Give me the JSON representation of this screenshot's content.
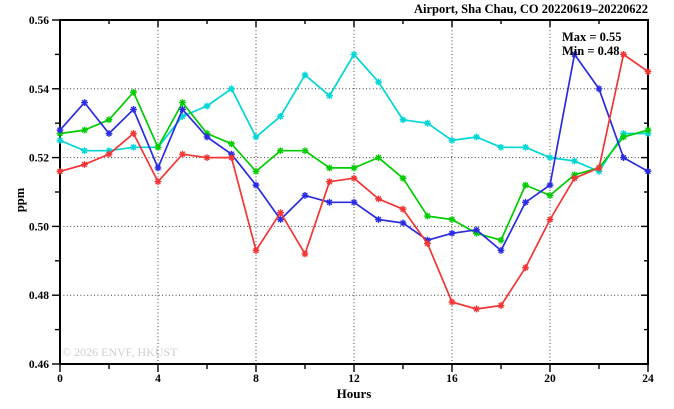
{
  "title": "Airport, Sha Chau, CO 20220619–20220622",
  "watermark": "© 2026 ENVF, HKUST",
  "annotations": {
    "max_label": "Max = 0.55",
    "min_label": "Min = 0.48"
  },
  "chart_data": {
    "type": "line",
    "title": "Airport, Sha Chau, CO 20220619–20220622",
    "xlabel": "Hours",
    "ylabel": "ppm",
    "xlim": [
      0,
      24
    ],
    "ylim": [
      0.46,
      0.56
    ],
    "grid": "dotted-major",
    "legend_position": "none",
    "marker": "asterisk",
    "x_tick_values": [
      0,
      4,
      8,
      12,
      16,
      20,
      24
    ],
    "x_tick_labels": [
      "0",
      "4",
      "8",
      "12",
      "16",
      "20",
      "24"
    ],
    "x_minor_tick_values": [
      2,
      6,
      10,
      14,
      18,
      22
    ],
    "y_tick_values": [
      0.46,
      0.48,
      0.5,
      0.52,
      0.54,
      0.56
    ],
    "y_tick_labels": [
      "0.46",
      "0.48",
      "0.50",
      "0.52",
      "0.54",
      "0.56"
    ],
    "y_minor_tick_values": [
      0.47,
      0.49,
      0.51,
      0.53,
      0.55
    ],
    "x_gridline_values": [
      4,
      8,
      12,
      16,
      20
    ],
    "y_gridline_values": [
      0.48,
      0.5,
      0.52,
      0.54
    ],
    "x": [
      0,
      1,
      2,
      3,
      4,
      5,
      6,
      7,
      8,
      9,
      10,
      11,
      12,
      13,
      14,
      15,
      16,
      17,
      18,
      19,
      20,
      21,
      22,
      23,
      24
    ],
    "series": [
      {
        "name": "cyan-series",
        "color": "#00d6d6",
        "values": [
          0.525,
          0.522,
          0.522,
          0.523,
          0.523,
          0.532,
          0.535,
          0.54,
          0.526,
          0.532,
          0.544,
          0.538,
          0.55,
          0.542,
          0.531,
          0.53,
          0.525,
          0.526,
          0.523,
          0.523,
          0.52,
          0.519,
          0.516,
          0.527,
          0.527
        ]
      },
      {
        "name": "green-series",
        "color": "#00cc00",
        "values": [
          0.527,
          0.528,
          0.531,
          0.539,
          0.523,
          0.536,
          0.527,
          0.524,
          0.516,
          0.522,
          0.522,
          0.517,
          0.517,
          0.52,
          0.514,
          0.503,
          0.502,
          0.498,
          0.496,
          0.512,
          0.509,
          0.515,
          0.517,
          0.526,
          0.528
        ]
      },
      {
        "name": "blue-series",
        "color": "#2b2bdf",
        "values": [
          0.528,
          0.536,
          0.527,
          0.534,
          0.517,
          0.534,
          0.526,
          0.521,
          0.512,
          0.502,
          0.509,
          0.507,
          0.507,
          0.502,
          0.501,
          0.496,
          0.498,
          0.499,
          0.493,
          0.507,
          0.512,
          0.55,
          0.54,
          0.52,
          0.516
        ]
      },
      {
        "name": "red-series",
        "color": "#f23535",
        "values": [
          0.516,
          0.518,
          0.521,
          0.527,
          0.513,
          0.521,
          0.52,
          0.52,
          0.493,
          0.504,
          0.492,
          0.513,
          0.514,
          0.508,
          0.505,
          0.495,
          0.478,
          0.476,
          0.477,
          0.488,
          0.502,
          0.514,
          0.517,
          0.55,
          0.545
        ]
      }
    ],
    "annotations": {
      "max_label": "Max = 0.55",
      "min_label": "Min = 0.48"
    },
    "watermark": "© 2026 ENVF, HKUST"
  }
}
